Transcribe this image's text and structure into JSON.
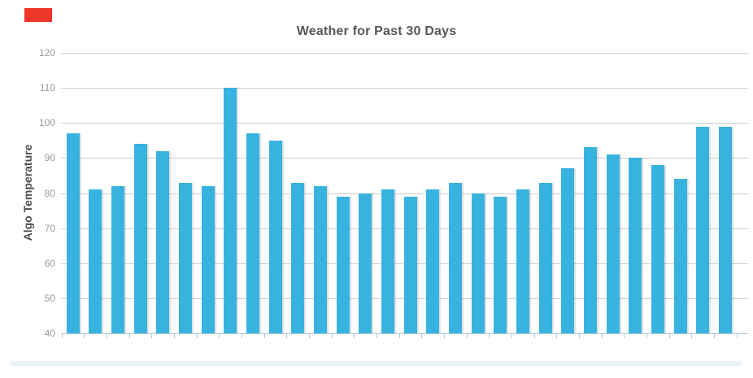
{
  "chart_data": {
    "type": "bar",
    "title": "Weather for Past 30 Days",
    "xlabel": "",
    "ylabel": "Algo Temperature",
    "x": [
      1,
      2,
      3,
      4,
      5,
      6,
      7,
      8,
      9,
      10,
      11,
      12,
      13,
      14,
      15,
      16,
      17,
      18,
      19,
      20,
      21,
      22,
      23,
      24,
      25,
      26,
      27,
      28,
      29,
      30
    ],
    "values": [
      97,
      81,
      82,
      94,
      92,
      83,
      82,
      110,
      97,
      95,
      83,
      82,
      79,
      80,
      81,
      79,
      81,
      83,
      80,
      79,
      81,
      83,
      87,
      93,
      91,
      90,
      88,
      84,
      99,
      99
    ],
    "ylim": [
      40,
      120
    ],
    "yticks": [
      120,
      110,
      100,
      90,
      80,
      70,
      60,
      50,
      40
    ],
    "x_tick_labels": [],
    "grid": true,
    "legend": false,
    "bar_color": "#38b3e0"
  },
  "colors": {
    "bar": "#38b3e0",
    "gridline": "#cccccc",
    "axis_line": "#abc8da",
    "tick_label": "#999999",
    "title": "#565656",
    "ylabel": "#4e4e4e",
    "scrollbar_track": "#e9f4f9",
    "red_marker": "#ee372a"
  },
  "scrollbar": {
    "present": true
  },
  "marker": {
    "present": true
  }
}
